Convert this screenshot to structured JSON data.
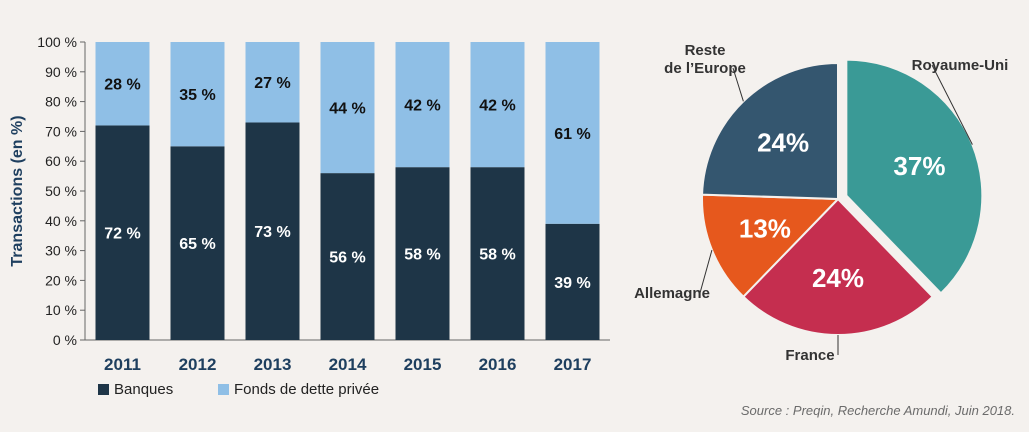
{
  "source": "Source : Preqin, Recherche Amundi, Juin 2018.",
  "colors": {
    "banques": "#1e3547",
    "fonds": "#8fbfe6",
    "axis_text": "#1e3f5f",
    "pie": [
      "#3a9a96",
      "#c52e4f",
      "#e6581d",
      "#34566f"
    ]
  },
  "chart_data": [
    {
      "type": "bar",
      "stacked": true,
      "categories": [
        "2011",
        "2012",
        "2013",
        "2014",
        "2015",
        "2016",
        "2017"
      ],
      "series": [
        {
          "name": "Banques",
          "values": [
            72,
            65,
            73,
            56,
            58,
            58,
            39
          ],
          "labels": [
            "72 %",
            "65 %",
            "73 %",
            "56 %",
            "58 %",
            "58 %",
            "39 %"
          ]
        },
        {
          "name": "Fonds de dette privée",
          "values": [
            28,
            35,
            27,
            44,
            42,
            42,
            61
          ],
          "labels": [
            "28 %",
            "35 %",
            "27 %",
            "44 %",
            "42 %",
            "42 %",
            "61 %"
          ]
        }
      ],
      "ylabel": "Transactions (en %)",
      "ylim": [
        0,
        100
      ],
      "yticks": [
        "0 %",
        "10 %",
        "20 %",
        "30 %",
        "40 %",
        "50 %",
        "60 %",
        "70 %",
        "80 %",
        "90 %",
        "100 %"
      ],
      "legend_position": "bottom-left",
      "grid": false
    },
    {
      "type": "pie",
      "slices": [
        {
          "name": "Royaume-Uni",
          "value": 37,
          "label": "37%"
        },
        {
          "name": "France",
          "value": 24,
          "label": "24%"
        },
        {
          "name": "Allemagne",
          "value": 13,
          "label": "13%"
        },
        {
          "name": "Reste\nde l’Europe",
          "value": 24,
          "label": "24%"
        }
      ],
      "exploded": "Royaume-Uni"
    }
  ]
}
